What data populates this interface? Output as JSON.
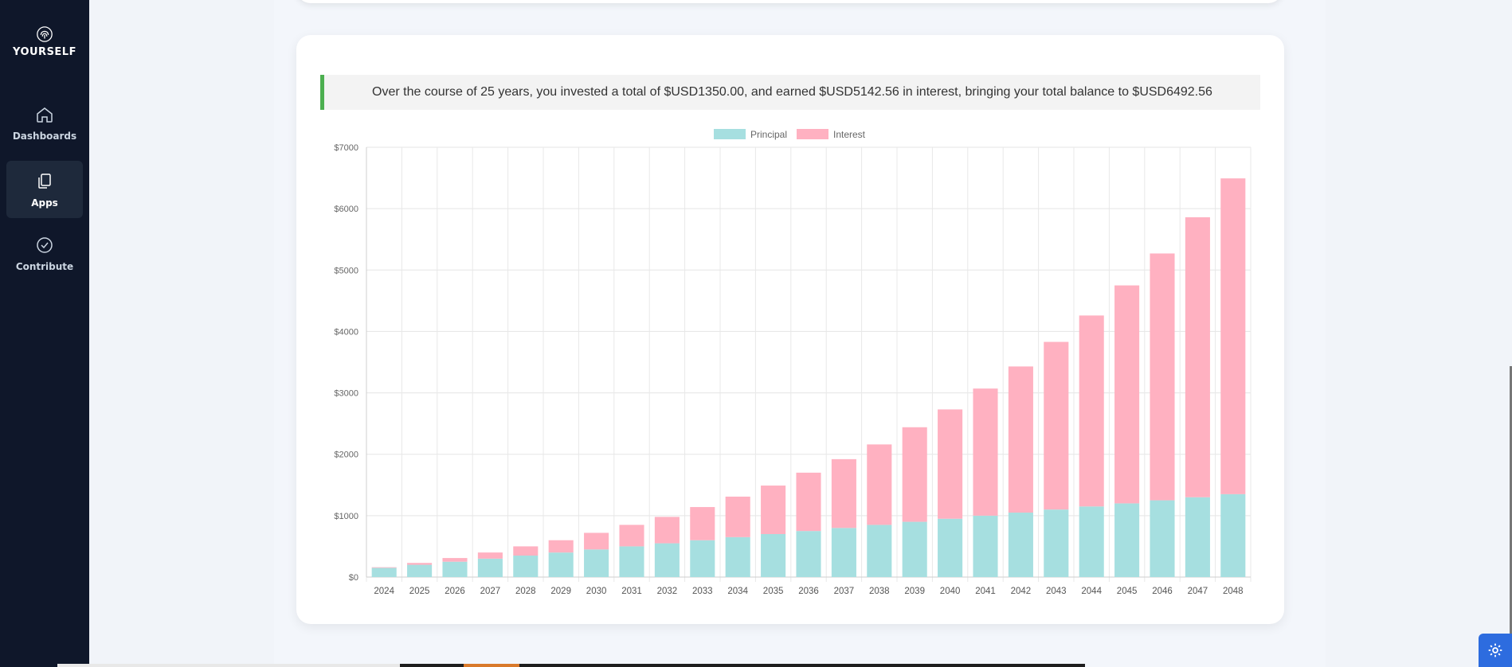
{
  "brand": {
    "name": "YOURSELF"
  },
  "nav": [
    {
      "label": "Dashboards",
      "icon": "home-icon",
      "active": false
    },
    {
      "label": "Apps",
      "icon": "files-icon",
      "active": true
    },
    {
      "label": "Contribute",
      "icon": "check-circle-icon",
      "active": false
    }
  ],
  "summary": {
    "text": "Over the course of 25 years, you invested a total of $USD1350.00, and earned $USD5142.56 in interest, bringing your total balance to $USD6492.56"
  },
  "colors": {
    "principal": "#a6dfe0",
    "interest": "#ffb1c1",
    "accent": "#4caf50",
    "sidebar": "#0f172a"
  },
  "chart_data": {
    "type": "bar",
    "stacked": true,
    "categories": [
      "2024",
      "2025",
      "2026",
      "2027",
      "2028",
      "2029",
      "2030",
      "2031",
      "2032",
      "2033",
      "2034",
      "2035",
      "2036",
      "2037",
      "2038",
      "2039",
      "2040",
      "2041",
      "2042",
      "2043",
      "2044",
      "2045",
      "2046",
      "2047",
      "2048"
    ],
    "series": [
      {
        "name": "Principal",
        "values": [
          150,
          200,
          250,
          300,
          350,
          400,
          450,
          500,
          550,
          600,
          650,
          700,
          750,
          800,
          850,
          900,
          950,
          1000,
          1050,
          1100,
          1150,
          1200,
          1250,
          1300,
          1350
        ]
      },
      {
        "name": "Interest",
        "values": [
          10,
          30,
          60,
          100,
          150,
          200,
          270,
          350,
          430,
          540,
          660,
          790,
          950,
          1120,
          1310,
          1540,
          1780,
          2070,
          2380,
          2730,
          3110,
          3550,
          4020,
          4560,
          5143
        ]
      }
    ],
    "y_ticks": [
      "$0",
      "$1000",
      "$2000",
      "$3000",
      "$4000",
      "$5000",
      "$6000",
      "$7000"
    ],
    "ylim": [
      0,
      7000
    ],
    "legend": "top-center",
    "grid": true
  }
}
